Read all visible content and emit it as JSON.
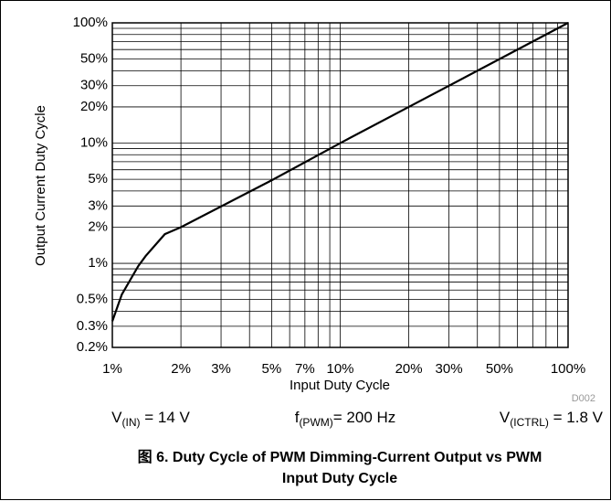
{
  "chart_data": {
    "type": "line",
    "xlabel": "Input Duty Cycle",
    "ylabel": "Output Current Duty Cycle",
    "x": [
      1,
      1.1,
      1.3,
      1.4,
      1.7,
      2,
      5,
      10,
      20,
      50,
      100
    ],
    "series": [
      {
        "color": "#000000",
        "values": [
          0.33,
          0.55,
          0.95,
          1.15,
          1.75,
          2,
          4.9,
          10,
          20,
          50,
          100
        ]
      }
    ],
    "xscale": "log",
    "yscale": "log",
    "grid": true,
    "xlim": [
      1,
      100
    ],
    "ylim": [
      0.2,
      100
    ],
    "xticks": [
      {
        "value": 1,
        "label": "1%"
      },
      {
        "value": 2,
        "label": "2%"
      },
      {
        "value": 3,
        "label": "3%"
      },
      {
        "value": 5,
        "label": "5%"
      },
      {
        "value": 7,
        "label": "7%"
      },
      {
        "value": 10,
        "label": "10%"
      },
      {
        "value": 20,
        "label": "20%"
      },
      {
        "value": 30,
        "label": "30%"
      },
      {
        "value": 50,
        "label": "50%"
      },
      {
        "value": 100,
        "label": "100%"
      }
    ],
    "minor_xticks": [
      4,
      6,
      8,
      9,
      40,
      60,
      70,
      80,
      90
    ],
    "yticks": [
      {
        "value": 0.2,
        "label": "0.2%"
      },
      {
        "value": 0.3,
        "label": "0.3%"
      },
      {
        "value": 0.5,
        "label": "0.5%"
      },
      {
        "value": 1,
        "label": "1%"
      },
      {
        "value": 2,
        "label": "2%"
      },
      {
        "value": 3,
        "label": "3%"
      },
      {
        "value": 5,
        "label": "5%"
      },
      {
        "value": 10,
        "label": "10%"
      },
      {
        "value": 20,
        "label": "20%"
      },
      {
        "value": 30,
        "label": "30%"
      },
      {
        "value": 50,
        "label": "50%"
      },
      {
        "value": 100,
        "label": "100%"
      }
    ],
    "minor_yticks": [
      0.4,
      0.6,
      0.7,
      0.8,
      0.9,
      4,
      6,
      7,
      8,
      9,
      40,
      60,
      70,
      80,
      90
    ],
    "code": "D002",
    "conditions": [
      {
        "base": "V",
        "sub": "(IN)",
        "rest": " = 14 V"
      },
      {
        "base": "f",
        "sub": "(PWM)",
        "rest": "= 200 Hz"
      },
      {
        "base": "V",
        "sub": "(ICTRL)",
        "rest": " = 1.8 V"
      }
    ],
    "caption": [
      "图 6. Duty Cycle of PWM Dimming-Current Output vs PWM",
      "Input Duty Cycle"
    ]
  }
}
